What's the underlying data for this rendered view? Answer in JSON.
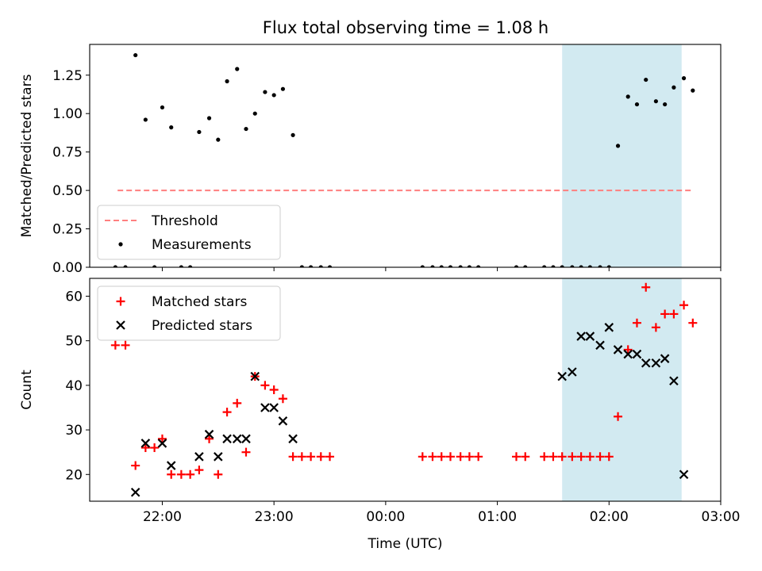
{
  "figure": {
    "title": "Flux total observing time = 1.08 h"
  },
  "chart_data": [
    {
      "type": "scatter",
      "ylabel": "Matched/Predicted stars",
      "xlabel": "",
      "ylim": [
        0,
        1.45
      ],
      "xlim": [
        -0.65,
        5.0
      ],
      "y_ticks": [
        0.0,
        0.25,
        0.5,
        0.75,
        1.0,
        1.25
      ],
      "y_tick_labels": [
        "0.00",
        "0.25",
        "0.50",
        "0.75",
        "1.00",
        "1.25"
      ],
      "x_ticks": [
        0,
        1,
        2,
        3,
        4,
        5
      ],
      "x_tick_labels": [
        "",
        "",
        "",
        "",
        "",
        ""
      ],
      "grid": false,
      "legend_position": "lower-left",
      "highlight_span": {
        "x0": 3.58,
        "x1": 4.65,
        "color": "#add8e6"
      },
      "threshold": {
        "name": "Threshold",
        "y": 0.5,
        "x0": -0.4,
        "x1": 4.75,
        "color": "#ff7f7f"
      },
      "series": [
        {
          "name": "Measurements",
          "color": "#000000",
          "marker": "dot",
          "x": [
            -0.42,
            -0.33,
            -0.24,
            -0.15,
            -0.07,
            0.0,
            0.08,
            0.17,
            0.25,
            0.33,
            0.42,
            0.5,
            0.58,
            0.67,
            0.75,
            0.83,
            0.92,
            1.0,
            1.08,
            1.17,
            1.25,
            1.33,
            1.42,
            1.5,
            2.33,
            2.42,
            2.5,
            2.58,
            2.67,
            2.75,
            2.83,
            3.17,
            3.25,
            3.42,
            3.5,
            3.58,
            3.67,
            3.75,
            3.83,
            3.92,
            4.0,
            4.08,
            4.17,
            4.25,
            4.33,
            4.42,
            4.5,
            4.58,
            4.67,
            4.75
          ],
          "y": [
            0.0,
            0.0,
            1.38,
            0.96,
            0.0,
            1.04,
            0.91,
            0.0,
            0.0,
            0.88,
            0.97,
            0.83,
            1.21,
            1.29,
            0.9,
            1.0,
            1.14,
            1.12,
            1.16,
            0.86,
            0.0,
            0.0,
            0.0,
            0.0,
            0.0,
            0.0,
            0.0,
            0.0,
            0.0,
            0.0,
            0.0,
            0.0,
            0.0,
            0.0,
            0.0,
            0.0,
            0.0,
            0.0,
            0.0,
            0.0,
            0.0,
            0.79,
            1.11,
            1.06,
            1.22,
            1.08,
            1.06,
            1.17,
            1.23,
            1.15
          ]
        }
      ]
    },
    {
      "type": "scatter",
      "ylabel": "Count",
      "xlabel": "Time (UTC)",
      "ylim": [
        14,
        64
      ],
      "xlim": [
        -0.65,
        5.0
      ],
      "y_ticks": [
        20,
        30,
        40,
        50,
        60
      ],
      "y_tick_labels": [
        "20",
        "30",
        "40",
        "50",
        "60"
      ],
      "x_ticks": [
        0,
        1,
        2,
        3,
        4,
        5
      ],
      "x_tick_labels": [
        "22:00",
        "23:00",
        "00:00",
        "01:00",
        "02:00",
        "03:00"
      ],
      "grid": false,
      "legend_position": "upper-left",
      "highlight_span": {
        "x0": 3.58,
        "x1": 4.65,
        "color": "#add8e6"
      },
      "series": [
        {
          "name": "Matched stars",
          "color": "#ff0000",
          "marker": "plus",
          "x": [
            -0.42,
            -0.33,
            -0.24,
            -0.15,
            -0.07,
            0.0,
            0.08,
            0.17,
            0.25,
            0.33,
            0.42,
            0.5,
            0.58,
            0.67,
            0.75,
            0.83,
            0.92,
            1.0,
            1.08,
            1.17,
            1.25,
            1.33,
            1.42,
            1.5,
            2.33,
            2.42,
            2.5,
            2.58,
            2.67,
            2.75,
            2.83,
            3.17,
            3.25,
            3.42,
            3.5,
            3.58,
            3.67,
            3.75,
            3.83,
            3.92,
            4.0,
            4.08,
            4.17,
            4.25,
            4.33,
            4.42,
            4.5,
            4.58,
            4.67,
            4.75
          ],
          "y": [
            49,
            49,
            22,
            26,
            26,
            28,
            20,
            20,
            20,
            21,
            28,
            20,
            34,
            36,
            25,
            42,
            40,
            39,
            37,
            24,
            24,
            24,
            24,
            24,
            24,
            24,
            24,
            24,
            24,
            24,
            24,
            24,
            24,
            24,
            24,
            24,
            24,
            24,
            24,
            24,
            24,
            33,
            48,
            54,
            62,
            53,
            56,
            56,
            58,
            54
          ]
        },
        {
          "name": "Predicted stars",
          "color": "#000000",
          "marker": "x",
          "x": [
            -0.24,
            -0.15,
            0.0,
            0.08,
            0.33,
            0.42,
            0.5,
            0.58,
            0.67,
            0.75,
            0.83,
            0.92,
            1.0,
            1.08,
            1.17,
            3.58,
            3.67,
            3.75,
            3.83,
            3.92,
            4.0,
            4.08,
            4.17,
            4.25,
            4.33,
            4.42,
            4.5,
            4.58,
            4.67
          ],
          "y": [
            16,
            27,
            27,
            22,
            24,
            29,
            24,
            28,
            28,
            28,
            42,
            35,
            35,
            32,
            28,
            42,
            43,
            51,
            51,
            49,
            53,
            48,
            47,
            47,
            45,
            45,
            46,
            41,
            20
          ]
        }
      ]
    }
  ]
}
